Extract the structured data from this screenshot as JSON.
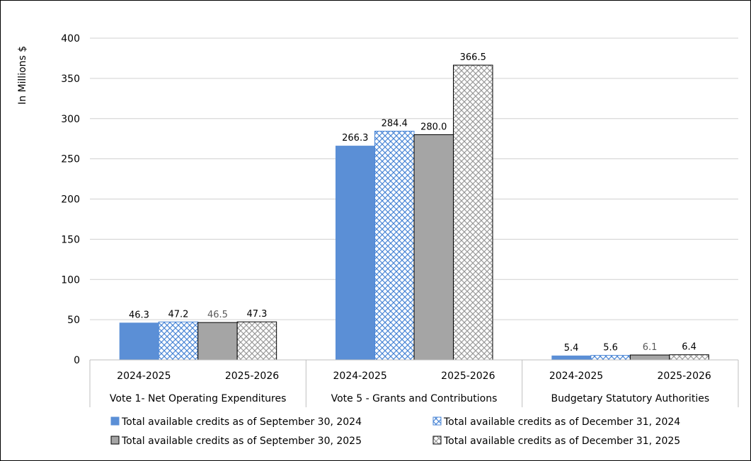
{
  "chart_data": {
    "type": "bar",
    "ylabel": "In Millions $",
    "ylim": [
      0,
      400
    ],
    "yticks": [
      0,
      50,
      100,
      150,
      200,
      250,
      300,
      350,
      400
    ],
    "groups": [
      {
        "label": "Vote 1- Net Operating Expenditures",
        "subcategories": [
          "2024-2025",
          "2025-2026"
        ]
      },
      {
        "label": "Vote 5 - Grants and Contributions",
        "subcategories": [
          "2024-2025",
          "2025-2026"
        ]
      },
      {
        "label": "Budgetary Statutory Authorities",
        "subcategories": [
          "2024-2025",
          "2025-2026"
        ]
      }
    ],
    "series": [
      {
        "name": "Total available credits as of September 30, 2024",
        "values": [
          46.3,
          266.3,
          5.4
        ],
        "labels": [
          "46.3",
          "266.3",
          "5.4"
        ],
        "fill": "#5B8FD6",
        "pattern": "solid"
      },
      {
        "name": "Total available credits as of December 31, 2024",
        "values": [
          47.2,
          284.4,
          5.6
        ],
        "labels": [
          "47.2",
          "284.4",
          "5.6"
        ],
        "fill": "#4A86D6",
        "pattern": "cross-hatch-blue"
      },
      {
        "name": "Total available credits as of September 30, 2025",
        "values": [
          46.5,
          280.0,
          6.1
        ],
        "labels": [
          "46.5",
          "280.0",
          "6.1"
        ],
        "fill": "#A5A5A5",
        "pattern": "solid"
      },
      {
        "name": "Total available credits as of December 31, 2025",
        "values": [
          47.3,
          366.5,
          6.4
        ],
        "labels": [
          "47.3",
          "366.5",
          "6.4"
        ],
        "fill": "#9A9A9A",
        "pattern": "cross-hatch-grey"
      }
    ],
    "grid": true,
    "legend_position": "bottom"
  }
}
